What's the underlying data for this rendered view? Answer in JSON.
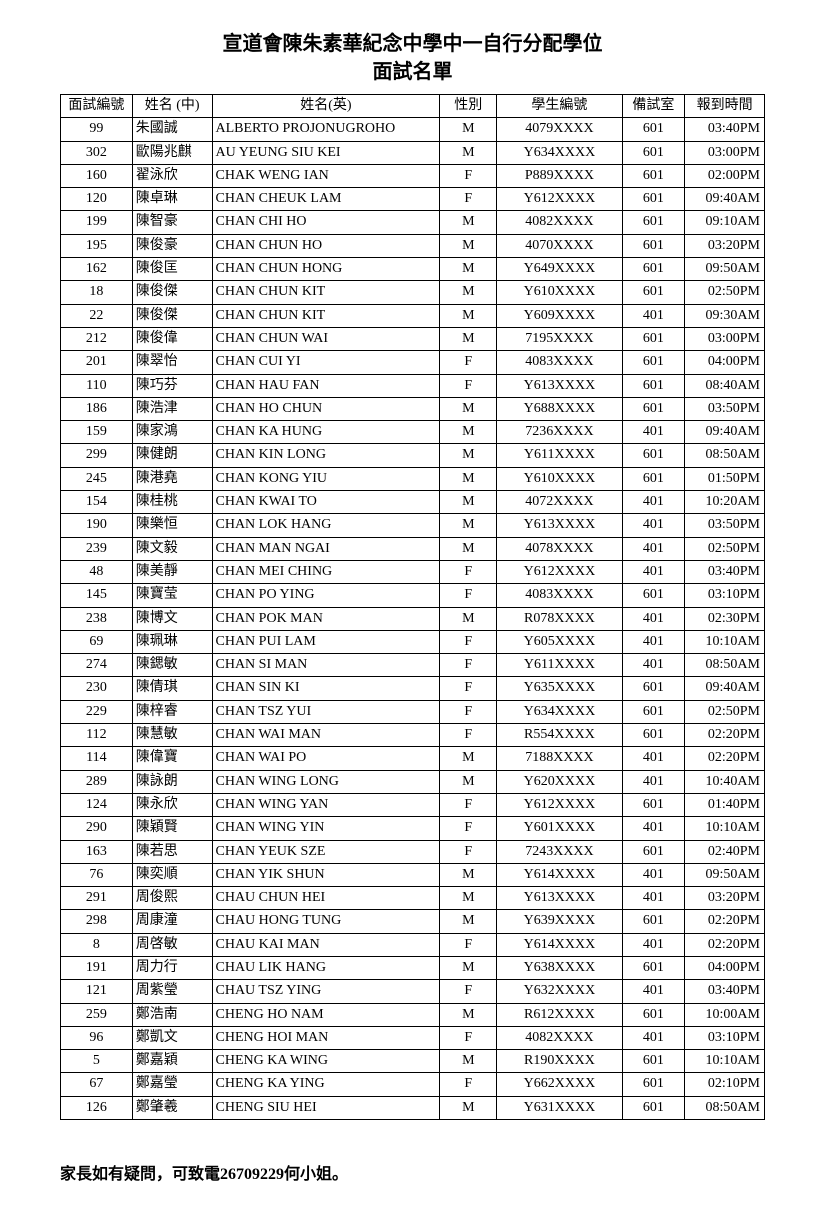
{
  "title_line1": "宣道會陳朱素華紀念中學中一自行分配學位",
  "title_line2": "面試名單",
  "columns": [
    "面試編號",
    "姓名 (中)",
    "姓名(英)",
    "性別",
    "學生編號",
    "備試室",
    "報到時間"
  ],
  "rows": [
    [
      "99",
      "朱國誠",
      "ALBERTO PROJONUGROHO",
      "M",
      "4079XXXX",
      "601",
      "03:40PM"
    ],
    [
      "302",
      "歐陽兆麒",
      "AU YEUNG SIU KEI",
      "M",
      "Y634XXXX",
      "601",
      "03:00PM"
    ],
    [
      "160",
      "翟泳欣",
      "CHAK WENG IAN",
      "F",
      "P889XXXX",
      "601",
      "02:00PM"
    ],
    [
      "120",
      "陳卓琳",
      "CHAN CHEUK LAM",
      "F",
      "Y612XXXX",
      "601",
      "09:40AM"
    ],
    [
      "199",
      "陳智豪",
      "CHAN CHI HO",
      "M",
      "4082XXXX",
      "601",
      "09:10AM"
    ],
    [
      "195",
      "陳俊豪",
      "CHAN CHUN HO",
      "M",
      "4070XXXX",
      "601",
      "03:20PM"
    ],
    [
      "162",
      "陳俊匡",
      "CHAN CHUN HONG",
      "M",
      "Y649XXXX",
      "601",
      "09:50AM"
    ],
    [
      "18",
      "陳俊傑",
      "CHAN CHUN KIT",
      "M",
      "Y610XXXX",
      "601",
      "02:50PM"
    ],
    [
      "22",
      "陳俊傑",
      "CHAN CHUN KIT",
      "M",
      "Y609XXXX",
      "401",
      "09:30AM"
    ],
    [
      "212",
      "陳俊偉",
      "CHAN CHUN WAI",
      "M",
      "7195XXXX",
      "601",
      "03:00PM"
    ],
    [
      "201",
      "陳翠怡",
      "CHAN CUI YI",
      "F",
      "4083XXXX",
      "601",
      "04:00PM"
    ],
    [
      "110",
      "陳巧芬",
      "CHAN HAU FAN",
      "F",
      "Y613XXXX",
      "601",
      "08:40AM"
    ],
    [
      "186",
      "陳浩津",
      "CHAN HO CHUN",
      "M",
      "Y688XXXX",
      "601",
      "03:50PM"
    ],
    [
      "159",
      "陳家鴻",
      "CHAN KA HUNG",
      "M",
      "7236XXXX",
      "401",
      "09:40AM"
    ],
    [
      "299",
      "陳健朗",
      "CHAN KIN LONG",
      "M",
      "Y611XXXX",
      "601",
      "08:50AM"
    ],
    [
      "245",
      "陳港堯",
      "CHAN KONG YIU",
      "M",
      "Y610XXXX",
      "601",
      "01:50PM"
    ],
    [
      "154",
      "陳桂桃",
      "CHAN KWAI TO",
      "M",
      "4072XXXX",
      "401",
      "10:20AM"
    ],
    [
      "190",
      "陳樂恒",
      "CHAN LOK HANG",
      "M",
      "Y613XXXX",
      "401",
      "03:50PM"
    ],
    [
      "239",
      "陳文毅",
      "CHAN MAN NGAI",
      "M",
      "4078XXXX",
      "401",
      "02:50PM"
    ],
    [
      "48",
      "陳美靜",
      "CHAN MEI CHING",
      "F",
      "Y612XXXX",
      "401",
      "03:40PM"
    ],
    [
      "145",
      "陳寶莹",
      "CHAN PO YING",
      "F",
      "4083XXXX",
      "601",
      "03:10PM"
    ],
    [
      "238",
      "陳博文",
      "CHAN POK MAN",
      "M",
      "R078XXXX",
      "401",
      "02:30PM"
    ],
    [
      "69",
      "陳珮琳",
      "CHAN PUI LAM",
      "F",
      "Y605XXXX",
      "401",
      "10:10AM"
    ],
    [
      "274",
      "陳鍶敏",
      "CHAN SI MAN",
      "F",
      "Y611XXXX",
      "401",
      "08:50AM"
    ],
    [
      "230",
      "陳倩琪",
      "CHAN SIN KI",
      "F",
      "Y635XXXX",
      "601",
      "09:40AM"
    ],
    [
      "229",
      "陳梓睿",
      "CHAN TSZ YUI",
      "F",
      "Y634XXXX",
      "601",
      "02:50PM"
    ],
    [
      "112",
      "陳慧敏",
      "CHAN WAI MAN",
      "F",
      "R554XXXX",
      "601",
      "02:20PM"
    ],
    [
      "114",
      "陳偉寶",
      "CHAN WAI PO",
      "M",
      "7188XXXX",
      "401",
      "02:20PM"
    ],
    [
      "289",
      "陳詠朗",
      "CHAN WING LONG",
      "M",
      "Y620XXXX",
      "401",
      "10:40AM"
    ],
    [
      "124",
      "陳永欣",
      "CHAN WING YAN",
      "F",
      "Y612XXXX",
      "601",
      "01:40PM"
    ],
    [
      "290",
      "陳穎賢",
      "CHAN WING YIN",
      "F",
      "Y601XXXX",
      "401",
      "10:10AM"
    ],
    [
      "163",
      "陳若思",
      "CHAN YEUK SZE",
      "F",
      "7243XXXX",
      "601",
      "02:40PM"
    ],
    [
      "76",
      "陳奕順",
      "CHAN YIK SHUN",
      "M",
      "Y614XXXX",
      "401",
      "09:50AM"
    ],
    [
      "291",
      "周俊熙",
      "CHAU CHUN HEI",
      "M",
      "Y613XXXX",
      "401",
      "03:20PM"
    ],
    [
      "298",
      "周康潼",
      "CHAU HONG TUNG",
      "M",
      "Y639XXXX",
      "601",
      "02:20PM"
    ],
    [
      "8",
      "周啓敏",
      "CHAU KAI MAN",
      "F",
      "Y614XXXX",
      "401",
      "02:20PM"
    ],
    [
      "191",
      "周力行",
      "CHAU LIK HANG",
      "M",
      "Y638XXXX",
      "601",
      "04:00PM"
    ],
    [
      "121",
      "周紫瑩",
      "CHAU TSZ YING",
      "F",
      "Y632XXXX",
      "401",
      "03:40PM"
    ],
    [
      "259",
      "鄭浩南",
      "CHENG HO NAM",
      "M",
      "R612XXXX",
      "601",
      "10:00AM"
    ],
    [
      "96",
      "鄭凱文",
      "CHENG HOI MAN",
      "F",
      "4082XXXX",
      "401",
      "03:10PM"
    ],
    [
      "5",
      "鄭嘉穎",
      "CHENG KA WING",
      "M",
      "R190XXXX",
      "601",
      "10:10AM"
    ],
    [
      "67",
      "鄭嘉瑩",
      "CHENG KA YING",
      "F",
      "Y662XXXX",
      "601",
      "02:10PM"
    ],
    [
      "126",
      "鄭肇羲",
      "CHENG SIU HEI",
      "M",
      "Y631XXXX",
      "601",
      "08:50AM"
    ]
  ],
  "footer": "家長如有疑問，可致電26709229何小姐。"
}
